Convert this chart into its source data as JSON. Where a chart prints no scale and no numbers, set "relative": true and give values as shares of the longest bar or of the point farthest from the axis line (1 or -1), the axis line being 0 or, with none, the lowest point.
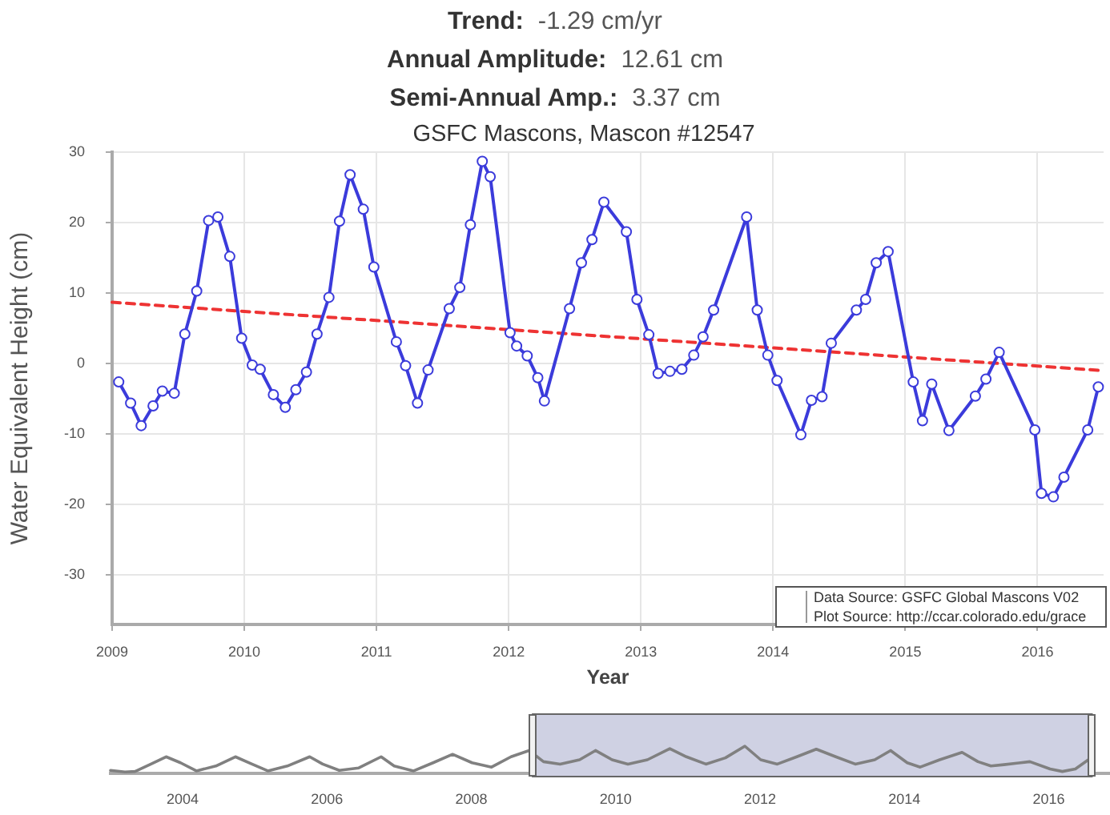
{
  "chart_data": [
    {
      "type": "line",
      "title": "Trend: -1.29 cm/yr\nAnnual Amplitude: 12.61 cm\nSemi-Annual Amp.: 3.37 cm",
      "subtitle": "GSFC Mascons, Mascon #12547",
      "xlabel": "Year",
      "ylabel": "Water Equivalent Height (cm)",
      "annotations": [
        "Data Source: GSFC Global Mascons V02",
        "Plot Source: http://ccar.colorado.edu/grace"
      ],
      "series": [
        {
          "color": "#3b3bdb",
          "x": [
            2009.05,
            2009.14,
            2009.22,
            2009.31,
            2009.38,
            2009.47,
            2009.55,
            2009.64,
            2009.73,
            2009.8,
            2009.89,
            2009.98,
            2010.06,
            2010.12,
            2010.22,
            2010.31,
            2010.39,
            2010.47,
            2010.55,
            2010.64,
            2010.72,
            2010.8,
            2010.9,
            2010.98,
            2011.15,
            2011.22,
            2011.31,
            2011.39,
            2011.55,
            2011.63,
            2011.71,
            2011.8,
            2011.86,
            2012.01,
            2012.06,
            2012.14,
            2012.22,
            2012.27,
            2012.46,
            2012.55,
            2012.63,
            2012.72,
            2012.89,
            2012.97,
            2013.06,
            2013.13,
            2013.22,
            2013.31,
            2013.4,
            2013.47,
            2013.55,
            2013.8,
            2013.88,
            2013.96,
            2014.03,
            2014.21,
            2014.29,
            2014.37,
            2014.44,
            2014.63,
            2014.7,
            2014.78,
            2014.87,
            2015.06,
            2015.13,
            2015.2,
            2015.33,
            2015.53,
            2015.61,
            2015.71,
            2015.98,
            2016.03,
            2016.12,
            2016.2,
            2016.38,
            2016.46
          ],
          "values": [
            -2.6,
            -5.6,
            -8.8,
            -6.0,
            -3.9,
            -4.2,
            4.2,
            10.3,
            20.3,
            20.8,
            15.2,
            3.6,
            -0.2,
            -0.8,
            -4.4,
            -6.2,
            -3.7,
            -1.2,
            4.2,
            9.4,
            20.2,
            26.8,
            21.9,
            13.7,
            3.1,
            -0.3,
            -5.6,
            -0.9,
            7.8,
            10.8,
            19.7,
            28.7,
            26.5,
            4.4,
            2.5,
            1.1,
            -2.0,
            -5.3,
            7.8,
            14.3,
            17.6,
            22.9,
            18.7,
            9.1,
            4.1,
            -1.4,
            -1.1,
            -0.8,
            1.2,
            3.8,
            7.6,
            20.8,
            7.6,
            1.2,
            -2.4,
            -10.1,
            -5.2,
            -4.7,
            2.9,
            7.6,
            9.1,
            14.3,
            15.9,
            -2.6,
            -8.1,
            -2.9,
            -9.5,
            -4.6,
            -2.2,
            1.6,
            -9.4,
            -18.4,
            -18.9,
            -16.1,
            -9.4,
            -3.3
          ]
        },
        {
          "color": "#ee3333",
          "x": [
            2009,
            2016.5
          ],
          "values": [
            8.7,
            -1.0
          ],
          "line_style": "dashed",
          "marker": "none"
        }
      ],
      "xlim": [
        2009,
        2016.5
      ],
      "xticks": [
        2009,
        2010,
        2011,
        2012,
        2013,
        2014,
        2015,
        2016
      ],
      "ylim": [
        -37,
        30
      ],
      "yticks": [
        -30,
        -20,
        -10,
        0,
        10,
        20,
        30
      ],
      "grid": true,
      "marker": "circle"
    },
    {
      "type": "line",
      "relative": true,
      "color": "#808080",
      "x": [
        2003.0,
        2003.2,
        2003.34,
        2003.56,
        2003.77,
        2003.97,
        2004.19,
        2004.46,
        2004.73,
        2004.96,
        2005.18,
        2005.45,
        2005.76,
        2005.94,
        2006.17,
        2006.44,
        2006.75,
        2006.93,
        2007.2,
        2007.47,
        2007.74,
        2008.01,
        2008.28,
        2008.55,
        2008.8,
        2009.0,
        2009.23,
        2009.5,
        2009.72,
        2009.95,
        2010.17,
        2010.44,
        2010.75,
        2010.98,
        2011.25,
        2011.52,
        2011.79,
        2012.01,
        2012.24,
        2012.51,
        2012.78,
        2013.05,
        2013.32,
        2013.59,
        2013.81,
        2014.04,
        2014.22,
        2014.49,
        2014.8,
        2015.02,
        2015.2,
        2015.38,
        2015.74,
        2016.02,
        2016.19,
        2016.37,
        2016.55
      ],
      "values": [
        0.11,
        0.05,
        0.07,
        0.34,
        0.61,
        0.39,
        0.09,
        0.27,
        0.61,
        0.34,
        0.09,
        0.27,
        0.61,
        0.34,
        0.11,
        0.2,
        0.61,
        0.27,
        0.09,
        0.39,
        0.7,
        0.39,
        0.23,
        0.61,
        0.84,
        0.43,
        0.34,
        0.5,
        0.84,
        0.5,
        0.34,
        0.5,
        0.91,
        0.61,
        0.34,
        0.57,
        1.0,
        0.5,
        0.34,
        0.61,
        0.89,
        0.61,
        0.34,
        0.5,
        0.84,
        0.39,
        0.23,
        0.5,
        0.77,
        0.43,
        0.27,
        0.32,
        0.43,
        0.16,
        0.07,
        0.16,
        0.5
      ],
      "xlim": [
        2003,
        2016.85
      ],
      "xticks": [
        2004,
        2006,
        2008,
        2010,
        2012,
        2014,
        2016
      ],
      "bands": [
        {
          "axis": "x",
          "from": 2008.85,
          "to": 2016.6,
          "color": "#cfd1e3"
        }
      ]
    }
  ]
}
